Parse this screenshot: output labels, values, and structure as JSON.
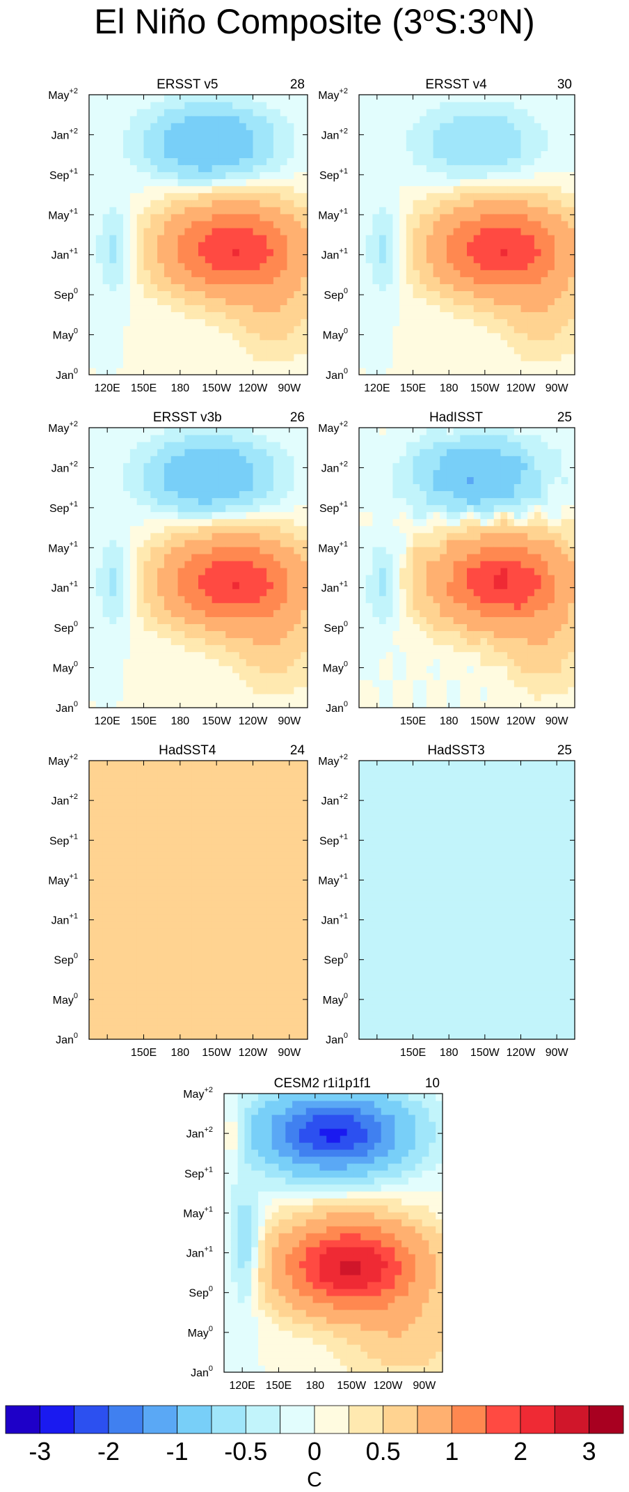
{
  "figure": {
    "title_main": "El Niño Composite (3",
    "title_sup1": "o",
    "title_mid": "S:3",
    "title_sup2": "o",
    "title_end": "N)"
  },
  "chart_data": [
    {
      "type": "heatmap",
      "title": "ERSST v5",
      "count": "28",
      "pattern": "ersst",
      "x_ticks": [
        "120E",
        "150E",
        "180",
        "150W",
        "120W",
        "90W"
      ],
      "y_ticks": [
        {
          "base": "Jan",
          "sup": "0"
        },
        {
          "base": "May",
          "sup": "0"
        },
        {
          "base": "Sep",
          "sup": "0"
        },
        {
          "base": "Jan",
          "sup": "+1"
        },
        {
          "base": "May",
          "sup": "+1"
        },
        {
          "base": "Sep",
          "sup": "+1"
        },
        {
          "base": "Jan",
          "sup": "+2"
        },
        {
          "base": "May",
          "sup": "+2"
        }
      ],
      "peak_warm": 2.0,
      "peak_cold": -1.0
    },
    {
      "type": "heatmap",
      "title": "ERSST v4",
      "count": "30",
      "pattern": "ersst4",
      "x_ticks": [
        "120E",
        "150E",
        "180",
        "150W",
        "120W",
        "90W"
      ],
      "y_ticks": [
        {
          "base": "Jan",
          "sup": "0"
        },
        {
          "base": "May",
          "sup": "0"
        },
        {
          "base": "Sep",
          "sup": "0"
        },
        {
          "base": "Jan",
          "sup": "+1"
        },
        {
          "base": "May",
          "sup": "+1"
        },
        {
          "base": "Sep",
          "sup": "+1"
        },
        {
          "base": "Jan",
          "sup": "+2"
        },
        {
          "base": "May",
          "sup": "+2"
        }
      ],
      "peak_warm": 2.0,
      "peak_cold": -0.5
    },
    {
      "type": "heatmap",
      "title": "ERSST v3b",
      "count": "26",
      "pattern": "ersst",
      "x_ticks": [
        "120E",
        "150E",
        "180",
        "150W",
        "120W",
        "90W"
      ],
      "y_ticks": [
        {
          "base": "Jan",
          "sup": "0"
        },
        {
          "base": "May",
          "sup": "0"
        },
        {
          "base": "Sep",
          "sup": "0"
        },
        {
          "base": "Jan",
          "sup": "+1"
        },
        {
          "base": "May",
          "sup": "+1"
        },
        {
          "base": "Sep",
          "sup": "+1"
        },
        {
          "base": "Jan",
          "sup": "+2"
        },
        {
          "base": "May",
          "sup": "+2"
        }
      ],
      "peak_warm": 2.0,
      "peak_cold": -1.0
    },
    {
      "type": "heatmap",
      "title": "HadISST",
      "count": "25",
      "pattern": "hadisst",
      "x_ticks": [
        "",
        "150E",
        "180",
        "150W",
        "120W",
        "90W"
      ],
      "y_ticks": [
        {
          "base": "Jan",
          "sup": "0"
        },
        {
          "base": "May",
          "sup": "0"
        },
        {
          "base": "Sep",
          "sup": "0"
        },
        {
          "base": "Jan",
          "sup": "+1"
        },
        {
          "base": "May",
          "sup": "+1"
        },
        {
          "base": "Sep",
          "sup": "+1"
        },
        {
          "base": "Jan",
          "sup": "+2"
        },
        {
          "base": "May",
          "sup": "+2"
        }
      ],
      "peak_warm": 2.0,
      "peak_cold": -1.0
    },
    {
      "type": "heatmap",
      "title": "HadSST4",
      "count": "24",
      "pattern": "flat_warm",
      "x_ticks": [
        "",
        "150E",
        "180",
        "150W",
        "120W",
        "90W"
      ],
      "y_ticks": [
        {
          "base": "Jan",
          "sup": "0"
        },
        {
          "base": "May",
          "sup": "0"
        },
        {
          "base": "Sep",
          "sup": "0"
        },
        {
          "base": "Jan",
          "sup": "+1"
        },
        {
          "base": "May",
          "sup": "+1"
        },
        {
          "base": "Sep",
          "sup": "+1"
        },
        {
          "base": "Jan",
          "sup": "+2"
        },
        {
          "base": "May",
          "sup": "+2"
        }
      ],
      "fill_value": 0.25
    },
    {
      "type": "heatmap",
      "title": "HadSST3",
      "count": "25",
      "pattern": "flat_cold",
      "x_ticks": [
        "",
        "150E",
        "180",
        "150W",
        "120W",
        "90W"
      ],
      "y_ticks": [
        {
          "base": "Jan",
          "sup": "0"
        },
        {
          "base": "May",
          "sup": "0"
        },
        {
          "base": "Sep",
          "sup": "0"
        },
        {
          "base": "Jan",
          "sup": "+1"
        },
        {
          "base": "May",
          "sup": "+1"
        },
        {
          "base": "Sep",
          "sup": "+1"
        },
        {
          "base": "Jan",
          "sup": "+2"
        },
        {
          "base": "May",
          "sup": "+2"
        }
      ],
      "fill_value": -0.25
    },
    {
      "type": "heatmap",
      "title": "CESM2 r1i1p1f1",
      "count": "10",
      "pattern": "cesm",
      "x_ticks": [
        "120E",
        "150E",
        "180",
        "150W",
        "120W",
        "90W"
      ],
      "y_ticks": [
        {
          "base": "Jan",
          "sup": "0"
        },
        {
          "base": "May",
          "sup": "0"
        },
        {
          "base": "Sep",
          "sup": "0"
        },
        {
          "base": "Jan",
          "sup": "+1"
        },
        {
          "base": "May",
          "sup": "+1"
        },
        {
          "base": "Sep",
          "sup": "+1"
        },
        {
          "base": "Jan",
          "sup": "+2"
        },
        {
          "base": "May",
          "sup": "+2"
        }
      ],
      "peak_warm": 2.6,
      "peak_cold": -2.6
    }
  ],
  "colorbar": {
    "colors": [
      "#1e00c8",
      "#1a1af0",
      "#2c50f0",
      "#4080f0",
      "#5aa8f5",
      "#78cff8",
      "#a0e6fa",
      "#c2f4fb",
      "#e2fdfd",
      "#fffbe0",
      "#ffe9b0",
      "#ffd391",
      "#ffb070",
      "#ff8850",
      "#ff4a42",
      "#ef2a34",
      "#d0162a",
      "#a80020"
    ],
    "labels": [
      "-3",
      "-2",
      "-1",
      "-0.5",
      "0",
      "0.5",
      "1",
      "2",
      "3"
    ],
    "unit": "C"
  }
}
